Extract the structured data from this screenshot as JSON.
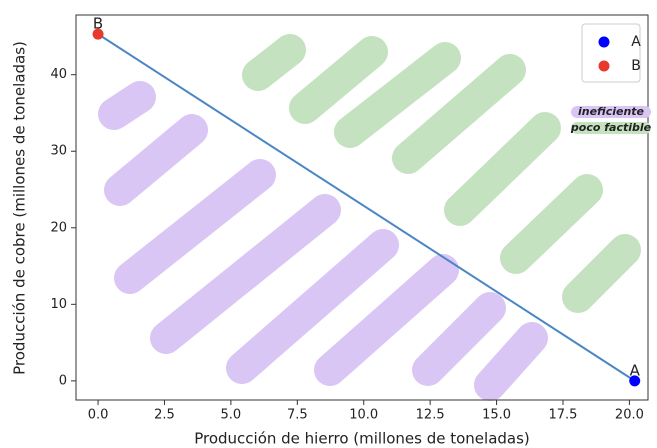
{
  "chart_data": {
    "type": "scatter",
    "x_label": "Producción de hierro (millones de toneladas)",
    "y_label": "Producción de cobre (millones de toneladas)",
    "series": [
      {
        "name": "A",
        "color": "#0000ff",
        "x": [
          20.2
        ],
        "values": [
          0
        ]
      },
      {
        "name": "B",
        "color": "#e8392b",
        "x": [
          0
        ],
        "values": [
          45.3
        ]
      }
    ],
    "line": {
      "x": [
        0,
        20.2
      ],
      "values": [
        45.3,
        0
      ],
      "color": "#4a86c5"
    },
    "annotations": [
      "A",
      "B"
    ],
    "highlight_labels": [
      {
        "text": "ineficiente",
        "color": "#d9c6f5"
      },
      {
        "text": "poco factible",
        "color": "#c4e2c0"
      }
    ],
    "xlim": [
      -0.83,
      20.7
    ],
    "ylim": [
      -2.5,
      47.8
    ],
    "xticks": [
      {
        "value": 0,
        "label": "0.0"
      },
      2.5,
      {
        "value": 5,
        "label": "5.0"
      },
      7.5,
      {
        "value": 10,
        "label": "10.0"
      },
      12.5,
      {
        "value": 15,
        "label": "15.0"
      },
      17.5,
      {
        "value": 20,
        "label": "20.0"
      }
    ],
    "yticks": [
      0,
      10,
      20,
      30,
      40
    ],
    "legend": "upper right"
  }
}
